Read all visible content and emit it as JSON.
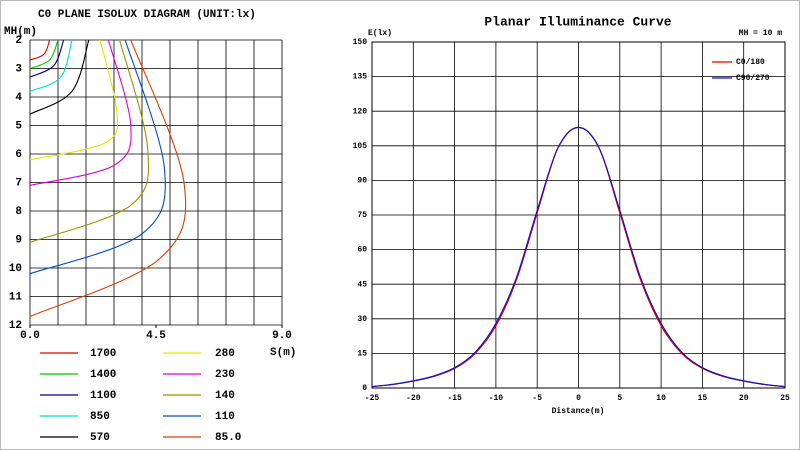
{
  "chart_data": [
    {
      "type": "contour",
      "title": "C0 PLANE ISOLUX DIAGRAM (UNIT:lx)",
      "y_label": "MH(m)",
      "x_label": "S(m)",
      "xlim": [
        0,
        9
      ],
      "ylim": [
        2,
        12
      ],
      "y_inverted": true,
      "xticks": [
        {
          "value": 0,
          "label": "0.0"
        },
        4.5,
        {
          "value": 9,
          "label": "9.0"
        }
      ],
      "xgrid": [
        0,
        1,
        2,
        3,
        4,
        5,
        6,
        7,
        8,
        9
      ],
      "yticks": [
        2,
        3,
        4,
        5,
        6,
        7,
        8,
        9,
        10,
        11,
        12
      ],
      "series": [
        {
          "name": "1700",
          "color": "#e00000",
          "x": [
            0.7,
            0.5,
            0
          ],
          "y": [
            2,
            2.5,
            2.7
          ]
        },
        {
          "name": "1400",
          "color": "#00c800",
          "x": [
            1.0,
            0.7,
            0
          ],
          "y": [
            2,
            2.7,
            3.0
          ]
        },
        {
          "name": "1100",
          "color": "#00008c",
          "x": [
            1.2,
            0.85,
            0
          ],
          "y": [
            2,
            2.9,
            3.3
          ]
        },
        {
          "name": "850",
          "color": "#00dcdc",
          "x": [
            1.5,
            1.1,
            0
          ],
          "y": [
            2,
            3.3,
            3.8
          ]
        },
        {
          "name": "570",
          "color": "#000000",
          "x": [
            2.1,
            1.5,
            0
          ],
          "y": [
            2,
            3.8,
            4.6
          ]
        },
        {
          "name": "280",
          "color": "#e6e600",
          "x": [
            2.5,
            3.1,
            2.7,
            0
          ],
          "y": [
            2,
            4.5,
            5.6,
            6.2
          ]
        },
        {
          "name": "230",
          "color": "#dc00dc",
          "x": [
            2.8,
            3.6,
            3.0,
            0
          ],
          "y": [
            2,
            5,
            6.4,
            7.1
          ]
        },
        {
          "name": "140",
          "color": "#969600",
          "x": [
            3.2,
            4.2,
            3.6,
            0
          ],
          "y": [
            2,
            5.8,
            7.8,
            9.1
          ]
        },
        {
          "name": "110",
          "color": "#0050c8",
          "x": [
            3.4,
            4.8,
            4.0,
            0
          ],
          "y": [
            2,
            6.5,
            8.8,
            10.2
          ]
        },
        {
          "name": "85.0",
          "color": "#dc4000",
          "x": [
            3.6,
            5.5,
            4.6,
            0
          ],
          "y": [
            2,
            7,
            9.7,
            11.7
          ]
        }
      ]
    },
    {
      "type": "line",
      "title": "Planar Illuminance Curve",
      "subtitle": "MH = 10 m",
      "y_label": "E(lx)",
      "x_label": "Distance(m)",
      "x": [
        -25,
        -22.5,
        -20,
        -17.5,
        -15,
        -12.5,
        -10,
        -7.5,
        -5,
        -2.5,
        0,
        2.5,
        5,
        7.5,
        10,
        12.5,
        15,
        17.5,
        20,
        22.5,
        25
      ],
      "xlim": [
        -25,
        25
      ],
      "ylim": [
        0,
        150
      ],
      "xticks": [
        -25,
        -20,
        -15,
        -10,
        -5,
        0,
        5,
        10,
        15,
        20,
        25
      ],
      "yticks": [
        0,
        15,
        30,
        45,
        60,
        75,
        90,
        105,
        120,
        135,
        150
      ],
      "grid": true,
      "legend": "upper right",
      "series": [
        {
          "name": "C0/180",
          "color": "#e00000",
          "values": [
            0.6,
            1.5,
            3,
            5,
            8.5,
            15,
            27,
            47,
            76,
            104,
            113,
            104,
            76,
            47,
            27,
            15,
            8.5,
            5,
            3,
            1.5,
            0.6
          ]
        },
        {
          "name": "C90/270",
          "color": "#1010c8",
          "values": [
            0.6,
            1.6,
            3.1,
            5.2,
            8.8,
            15.5,
            28,
            48,
            77,
            104,
            113,
            104,
            77,
            48,
            28,
            15.5,
            8.8,
            5.2,
            3.1,
            1.6,
            0.6
          ]
        }
      ]
    }
  ]
}
